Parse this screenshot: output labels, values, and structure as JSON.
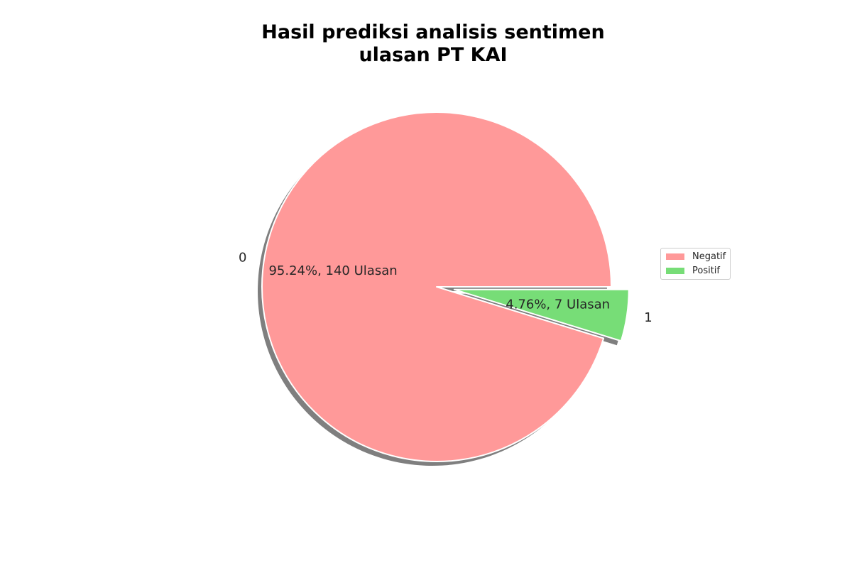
{
  "chart_data": {
    "type": "pie",
    "title_lines": [
      "Hasil prediksi analisis sentimen",
      "ulasan PT KAI"
    ],
    "slices": [
      {
        "label": "0",
        "legend": "Negatif",
        "count": 140,
        "percent": 95.24,
        "autopct_text": "95.24%, 140 Ulasan",
        "color": "#ff9999",
        "exploded": false
      },
      {
        "label": "1",
        "legend": "Positif",
        "count": 7,
        "percent": 4.76,
        "autopct_text": "4.76%, 7 Ulasan",
        "color": "#77dd77",
        "exploded": true
      }
    ],
    "shadow": true,
    "legend_position": "right"
  }
}
